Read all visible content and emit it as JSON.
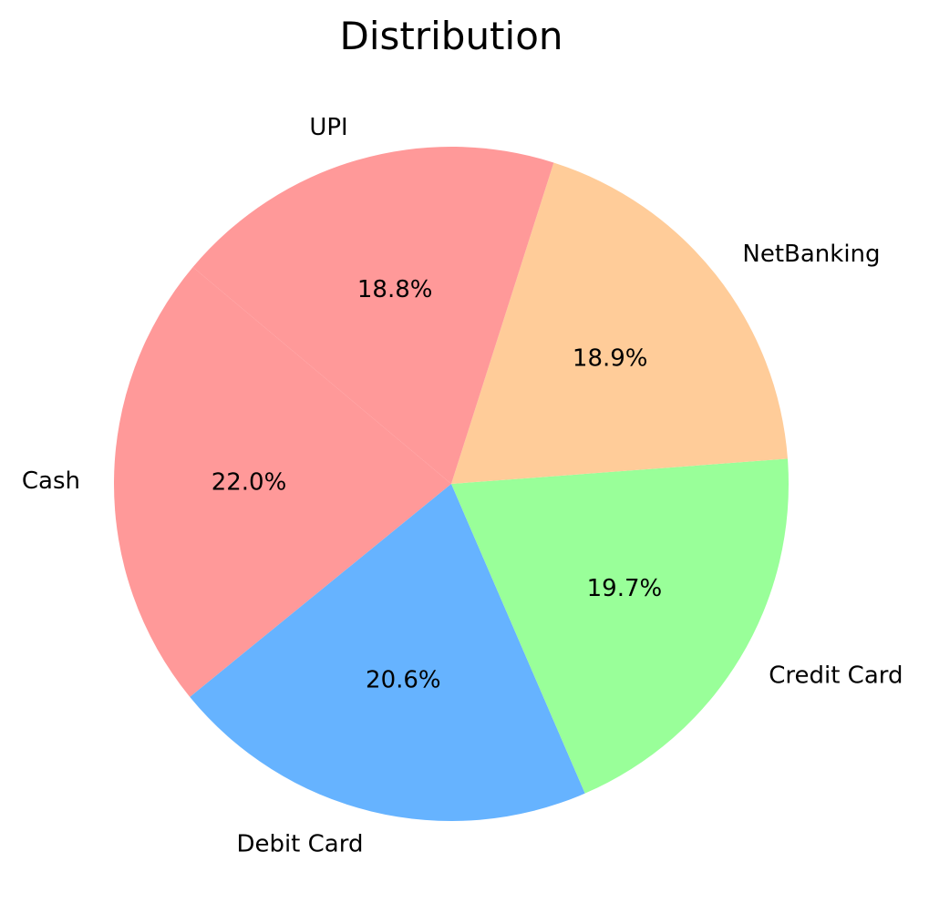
{
  "chart_data": {
    "type": "pie",
    "title": "Distribution",
    "categories": [
      "Cash",
      "Debit Card",
      "Credit Card",
      "NetBanking",
      "UPI"
    ],
    "values": [
      22.0,
      20.6,
      19.7,
      18.9,
      18.8
    ],
    "percent_labels": [
      "22.0%",
      "20.6%",
      "19.7%",
      "18.9%",
      "18.8%"
    ],
    "colors": [
      "#ff9999",
      "#66b3ff",
      "#99ff99",
      "#ffcc99",
      "#ff9999"
    ],
    "start_angle_deg": 140,
    "direction": "counterclockwise",
    "legend": "none"
  }
}
